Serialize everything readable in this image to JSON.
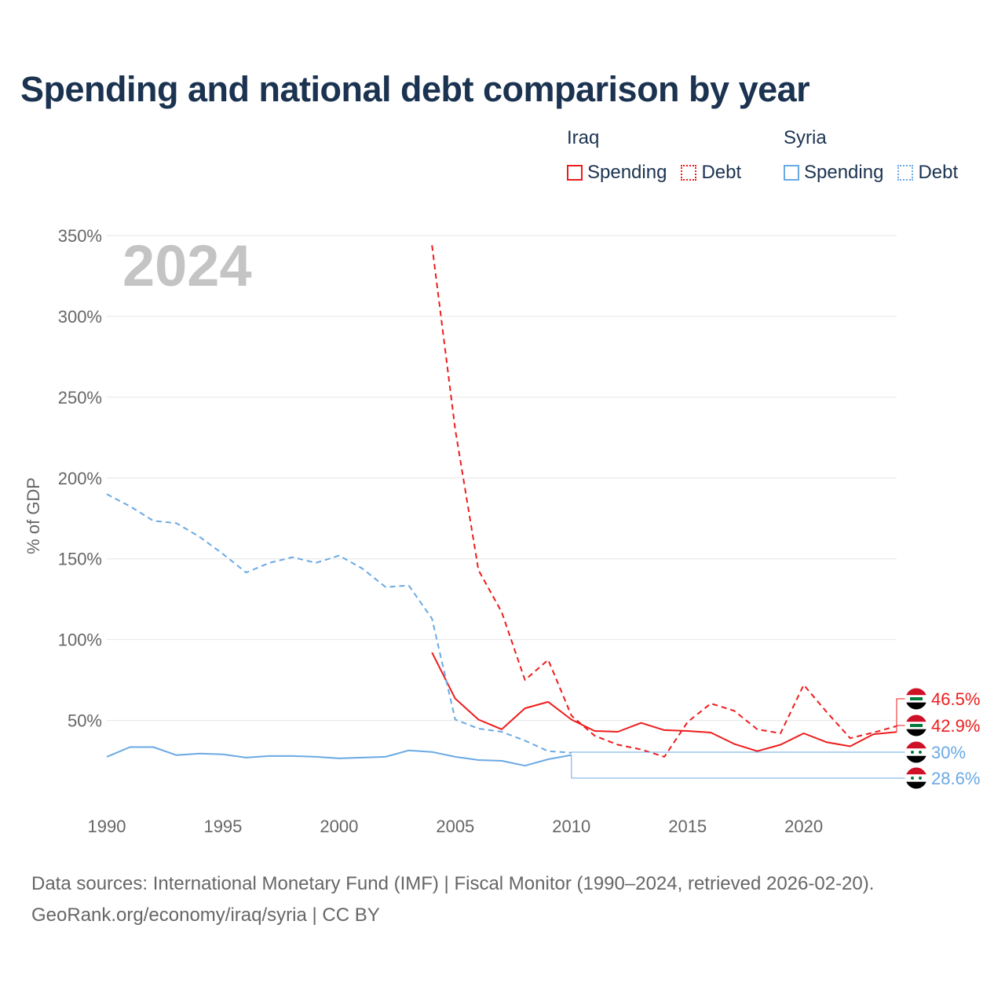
{
  "title": "Spending and national debt comparison by year",
  "year_label": "2024",
  "legend": {
    "groups": [
      {
        "name": "Iraq",
        "color": "#ee1c1c",
        "items": [
          {
            "label": "Spending",
            "style": "solid"
          },
          {
            "label": "Debt",
            "style": "dotted"
          }
        ]
      },
      {
        "name": "Syria",
        "color": "#6aa9e4",
        "items": [
          {
            "label": "Spending",
            "style": "solid"
          },
          {
            "label": "Debt",
            "style": "dotted"
          }
        ]
      }
    ]
  },
  "footer": {
    "line1": "Data sources: International Monetary Fund (IMF) | Fiscal Monitor (1990–2024, retrieved 2026-02-20).",
    "line2": "GeoRank.org/economy/iraq/syria | CC BY"
  },
  "chart_data": {
    "type": "line",
    "ylabel": "% of GDP",
    "xlim": [
      1990,
      2024
    ],
    "ylim": [
      0,
      350
    ],
    "x_ticks": [
      1990,
      1995,
      2000,
      2005,
      2010,
      2015,
      2020
    ],
    "y_ticks": [
      {
        "value": 50,
        "label": "50%"
      },
      {
        "value": 100,
        "label": "100%"
      },
      {
        "value": 150,
        "label": "150%"
      },
      {
        "value": 200,
        "label": "200%"
      },
      {
        "value": 250,
        "label": "250%"
      },
      {
        "value": 300,
        "label": "300%"
      },
      {
        "value": 350,
        "label": "350%"
      }
    ],
    "series": [
      {
        "name": "Iraq Spending",
        "country": "Iraq",
        "kind": "spending",
        "color": "#ee1c1c",
        "dash": "solid",
        "x": [
          2004,
          2005,
          2006,
          2007,
          2008,
          2009,
          2010,
          2011,
          2012,
          2013,
          2014,
          2015,
          2016,
          2017,
          2018,
          2019,
          2020,
          2021,
          2022,
          2023,
          2024
        ],
        "y": [
          92,
          63.5,
          50.5,
          44.5,
          57.5,
          61.5,
          50.5,
          43.5,
          43,
          48.5,
          44,
          43.5,
          42.5,
          35.5,
          31,
          35,
          42,
          36.5,
          34,
          41.5,
          42.9
        ],
        "end_label": "42.9%"
      },
      {
        "name": "Iraq Debt",
        "country": "Iraq",
        "kind": "debt",
        "color": "#ee1c1c",
        "dash": "dashed",
        "x": [
          2004,
          2005,
          2006,
          2007,
          2008,
          2009,
          2010,
          2011,
          2012,
          2013,
          2014,
          2015,
          2016,
          2017,
          2018,
          2019,
          2020,
          2021,
          2022,
          2023,
          2024
        ],
        "y": [
          344,
          230,
          143,
          117,
          75,
          87.5,
          53,
          40.5,
          35,
          32,
          27.5,
          49,
          60.5,
          56,
          44.5,
          42,
          72,
          55,
          39,
          42.5,
          46.5
        ],
        "end_label": "46.5%"
      },
      {
        "name": "Syria Spending",
        "country": "Syria",
        "kind": "spending",
        "color": "#6aa9e4",
        "dash": "solid",
        "x": [
          1990,
          1991,
          1992,
          1993,
          1994,
          1995,
          1996,
          1997,
          1998,
          1999,
          2000,
          2001,
          2002,
          2003,
          2004,
          2005,
          2006,
          2007,
          2008,
          2009,
          2010
        ],
        "y": [
          27.5,
          33.5,
          33.5,
          28.5,
          29.5,
          29,
          27,
          28,
          28,
          27.5,
          26.5,
          27,
          27.5,
          31.5,
          30.5,
          27.5,
          25.5,
          25,
          22,
          26,
          28.6
        ],
        "end_label": "28.6%"
      },
      {
        "name": "Syria Debt",
        "country": "Syria",
        "kind": "debt",
        "color": "#6aa9e4",
        "dash": "dashed",
        "x": [
          1990,
          1991,
          1992,
          1993,
          1994,
          1995,
          1996,
          1997,
          1998,
          1999,
          2000,
          2001,
          2002,
          2003,
          2004,
          2005,
          2006,
          2007,
          2008,
          2009,
          2010
        ],
        "y": [
          190,
          182.5,
          173.5,
          172,
          163.5,
          153,
          141.5,
          147.5,
          151,
          147.5,
          152,
          144,
          132.5,
          133.5,
          113,
          50.5,
          45,
          43,
          37.5,
          31,
          30
        ],
        "end_label": "30%"
      }
    ]
  }
}
